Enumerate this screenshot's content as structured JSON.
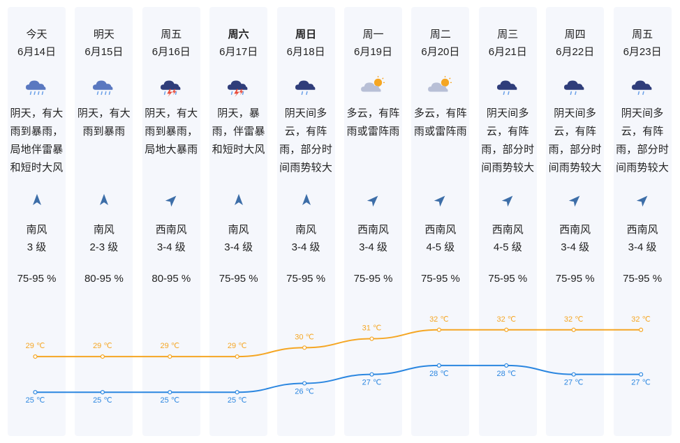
{
  "days": [
    {
      "day": "今天",
      "date": "6月14日",
      "bold": false,
      "weather": "heavy-rain",
      "desc": "阴天，有大雨到暴雨，局地伴雷暴和短时大风",
      "wind_dir": "南风",
      "wind_level": "3 级",
      "wind_icon": "north-arrow-icon",
      "humidity": "75-95 %"
    },
    {
      "day": "明天",
      "date": "6月15日",
      "bold": false,
      "weather": "heavy-rain",
      "desc": "阴天，有大雨到暴雨",
      "wind_dir": "南风",
      "wind_level": "2-3 级",
      "wind_icon": "north-arrow-icon",
      "humidity": "80-95 %"
    },
    {
      "day": "周五",
      "date": "6月16日",
      "bold": false,
      "weather": "thunderstorm",
      "desc": "阴天，有大雨到暴雨，局地大暴雨",
      "wind_dir": "西南风",
      "wind_level": "3-4 级",
      "wind_icon": "northeast-arrow-icon",
      "humidity": "80-95 %"
    },
    {
      "day": "周六",
      "date": "6月17日",
      "bold": true,
      "weather": "thunderstorm",
      "desc": "阴天，暴雨，伴雷暴和短时大风",
      "wind_dir": "南风",
      "wind_level": "3-4 级",
      "wind_icon": "north-arrow-icon",
      "humidity": "75-95 %"
    },
    {
      "day": "周日",
      "date": "6月18日",
      "bold": true,
      "weather": "rain",
      "desc": "阴天间多云，有阵雨，部分时间雨势较大",
      "wind_dir": "南风",
      "wind_level": "3-4 级",
      "wind_icon": "north-arrow-icon",
      "humidity": "75-95 %"
    },
    {
      "day": "周一",
      "date": "6月19日",
      "bold": false,
      "weather": "partly-cloudy",
      "desc": "多云，有阵雨或雷阵雨",
      "wind_dir": "西南风",
      "wind_level": "3-4 级",
      "wind_icon": "northeast-arrow-icon",
      "humidity": "75-95 %"
    },
    {
      "day": "周二",
      "date": "6月20日",
      "bold": false,
      "weather": "partly-cloudy",
      "desc": "多云，有阵雨或雷阵雨",
      "wind_dir": "西南风",
      "wind_level": "4-5 级",
      "wind_icon": "northeast-arrow-icon",
      "humidity": "75-95 %"
    },
    {
      "day": "周三",
      "date": "6月21日",
      "bold": false,
      "weather": "rain",
      "desc": "阴天间多云，有阵雨，部分时间雨势较大",
      "wind_dir": "西南风",
      "wind_level": "4-5 级",
      "wind_icon": "northeast-arrow-icon",
      "humidity": "75-95 %"
    },
    {
      "day": "周四",
      "date": "6月22日",
      "bold": false,
      "weather": "rain",
      "desc": "阴天间多云，有阵雨，部分时间雨势较大",
      "wind_dir": "西南风",
      "wind_level": "3-4 级",
      "wind_icon": "northeast-arrow-icon",
      "humidity": "75-95 %"
    },
    {
      "day": "周五",
      "date": "6月23日",
      "bold": false,
      "weather": "rain",
      "desc": "阴天间多云，有阵雨，部分时间雨势较大",
      "wind_dir": "西南风",
      "wind_level": "3-4 级",
      "wind_icon": "northeast-arrow-icon",
      "humidity": "75-95 %"
    }
  ],
  "chart_data": {
    "type": "line",
    "categories": [
      "6月14日",
      "6月15日",
      "6月16日",
      "6月17日",
      "6月18日",
      "6月19日",
      "6月20日",
      "6月21日",
      "6月22日",
      "6月23日"
    ],
    "series": [
      {
        "key": "high",
        "color": "#f5a623",
        "values": [
          29,
          29,
          29,
          29,
          30,
          31,
          32,
          32,
          32,
          32
        ],
        "labels": [
          "29 ℃",
          "29 ℃",
          "29 ℃",
          "29 ℃",
          "30 ℃",
          "31 ℃",
          "32 ℃",
          "32 ℃",
          "32 ℃",
          "32 ℃"
        ]
      },
      {
        "key": "low",
        "color": "#2a86e0",
        "values": [
          25,
          25,
          25,
          25,
          26,
          27,
          28,
          28,
          27,
          27
        ],
        "labels": [
          "25 ℃",
          "25 ℃",
          "25 ℃",
          "25 ℃",
          "26 ℃",
          "27 ℃",
          "28 ℃",
          "28 ℃",
          "27 ℃",
          "27 ℃"
        ]
      }
    ],
    "ylim": [
      24,
      33
    ],
    "grid": false,
    "legend": "none"
  }
}
